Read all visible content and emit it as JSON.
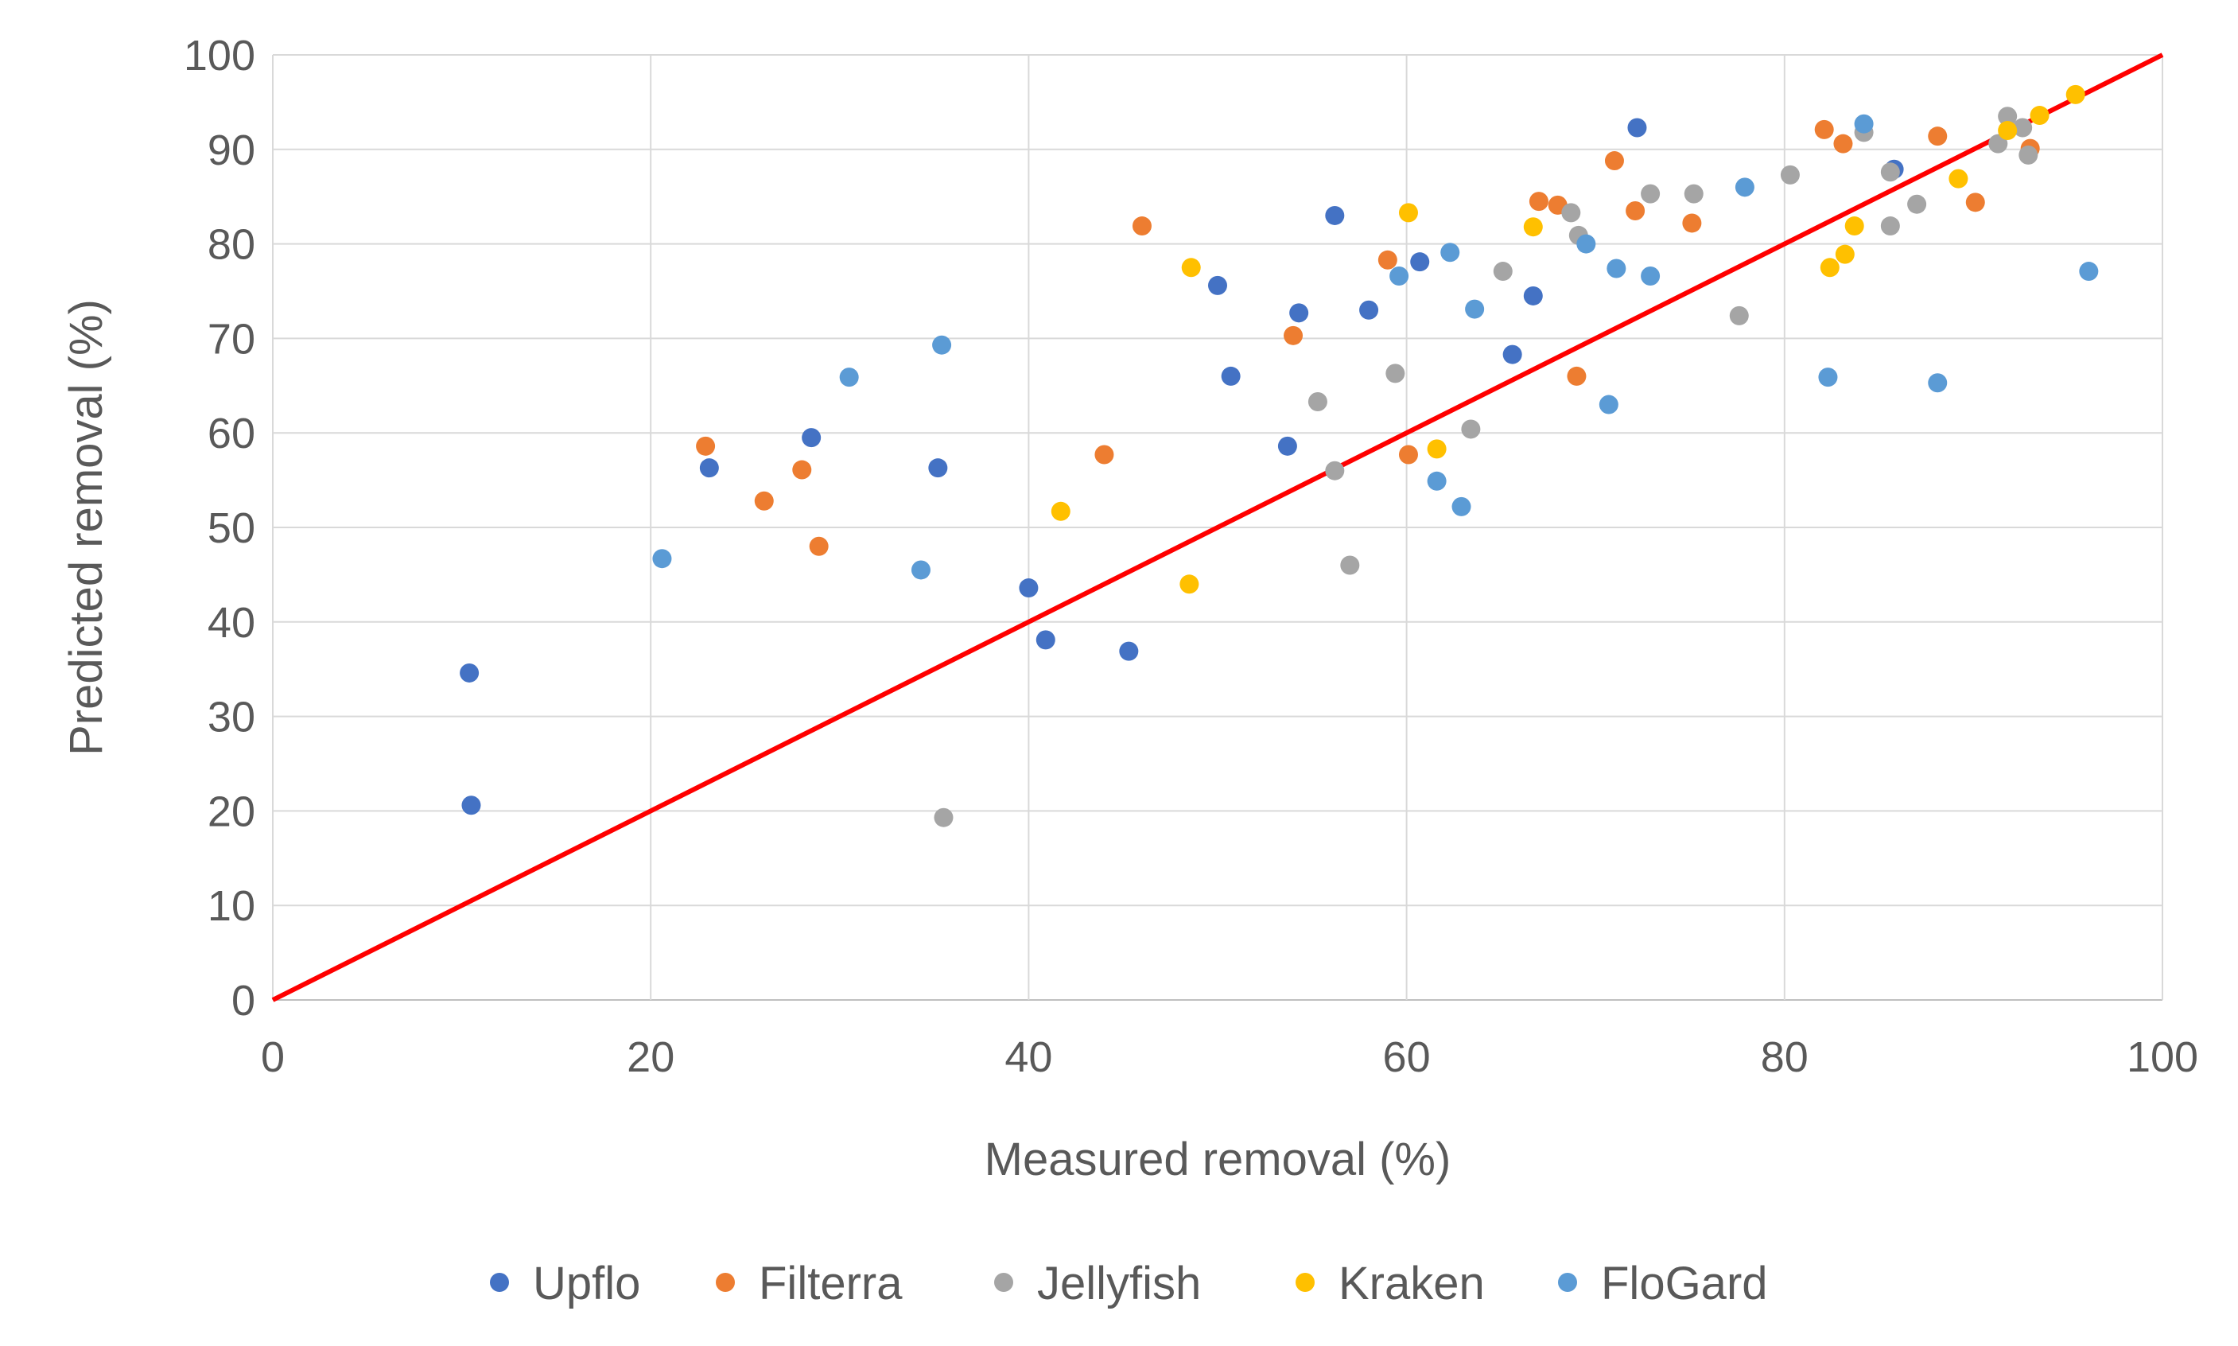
{
  "chart_data": {
    "type": "scatter",
    "title": "",
    "xlabel": "Measured removal (%)",
    "ylabel": "Predicted removal (%)",
    "xlim": [
      0,
      100
    ],
    "ylim": [
      0,
      100
    ],
    "xticks": [
      0,
      20,
      40,
      60,
      80,
      100
    ],
    "yticks": [
      0,
      10,
      20,
      30,
      40,
      50,
      60,
      70,
      80,
      90,
      100
    ],
    "grid": true,
    "legend_position": "bottom",
    "reference_line": {
      "name": "1:1 line",
      "x": [
        0,
        100
      ],
      "y": [
        0,
        100
      ],
      "color": "#FF0000"
    },
    "series": [
      {
        "name": "Upflo",
        "color": "#4472C4",
        "points": [
          [
            10.4,
            34.6
          ],
          [
            10.5,
            20.6
          ],
          [
            23.1,
            56.3
          ],
          [
            28.5,
            59.5
          ],
          [
            35.2,
            56.3
          ],
          [
            40.0,
            43.6
          ],
          [
            40.9,
            38.1
          ],
          [
            45.3,
            36.9
          ],
          [
            50.0,
            75.6
          ],
          [
            50.7,
            66.0
          ],
          [
            54.3,
            72.7
          ],
          [
            53.7,
            58.6
          ],
          [
            56.2,
            83.0
          ],
          [
            58.0,
            73.0
          ],
          [
            60.7,
            78.1
          ],
          [
            65.6,
            68.3
          ],
          [
            66.7,
            74.5
          ],
          [
            72.2,
            92.3
          ],
          [
            85.8,
            87.9
          ]
        ]
      },
      {
        "name": "Filterra",
        "color": "#ED7D31",
        "points": [
          [
            22.9,
            58.6
          ],
          [
            26.0,
            52.8
          ],
          [
            28.0,
            56.1
          ],
          [
            28.9,
            48.0
          ],
          [
            44.0,
            57.7
          ],
          [
            46.0,
            81.9
          ],
          [
            54.0,
            70.3
          ],
          [
            59.0,
            78.3
          ],
          [
            60.1,
            57.7
          ],
          [
            67.0,
            84.5
          ],
          [
            68.0,
            84.1
          ],
          [
            69.0,
            66.0
          ],
          [
            71.0,
            88.8
          ],
          [
            72.1,
            83.5
          ],
          [
            75.1,
            82.2
          ],
          [
            82.1,
            92.1
          ],
          [
            83.1,
            90.6
          ],
          [
            88.1,
            91.4
          ],
          [
            90.1,
            84.4
          ],
          [
            93.0,
            90.1
          ]
        ]
      },
      {
        "name": "Jellyfish",
        "color": "#A5A5A5",
        "points": [
          [
            35.5,
            19.3
          ],
          [
            55.3,
            63.3
          ],
          [
            56.2,
            56.0
          ],
          [
            57.0,
            46.0
          ],
          [
            59.4,
            66.3
          ],
          [
            63.4,
            60.4
          ],
          [
            65.1,
            77.1
          ],
          [
            68.7,
            83.3
          ],
          [
            69.1,
            80.9
          ],
          [
            72.9,
            85.3
          ],
          [
            75.2,
            85.3
          ],
          [
            77.6,
            72.4
          ],
          [
            80.3,
            87.3
          ],
          [
            84.2,
            91.8
          ],
          [
            85.6,
            87.6
          ],
          [
            85.6,
            81.9
          ],
          [
            87.0,
            84.2
          ],
          [
            91.3,
            90.6
          ],
          [
            91.8,
            93.5
          ],
          [
            92.6,
            92.3
          ],
          [
            92.9,
            89.4
          ]
        ]
      },
      {
        "name": "Kraken",
        "color": "#FFC000",
        "points": [
          [
            41.7,
            51.7
          ],
          [
            48.5,
            44.0
          ],
          [
            48.6,
            77.5
          ],
          [
            60.1,
            83.3
          ],
          [
            61.6,
            58.3
          ],
          [
            66.7,
            81.8
          ],
          [
            82.4,
            77.5
          ],
          [
            83.2,
            78.9
          ],
          [
            83.7,
            81.9
          ],
          [
            89.2,
            86.9
          ],
          [
            91.8,
            92.0
          ],
          [
            93.5,
            93.6
          ],
          [
            95.4,
            95.8
          ]
        ]
      },
      {
        "name": "FloGard",
        "color": "#5B9BD5",
        "points": [
          [
            20.6,
            46.7
          ],
          [
            30.5,
            65.9
          ],
          [
            34.3,
            45.5
          ],
          [
            35.4,
            69.3
          ],
          [
            59.6,
            76.6
          ],
          [
            61.6,
            54.9
          ],
          [
            62.3,
            79.1
          ],
          [
            62.9,
            52.2
          ],
          [
            63.6,
            73.1
          ],
          [
            69.5,
            80.0
          ],
          [
            70.7,
            63.0
          ],
          [
            71.1,
            77.4
          ],
          [
            72.9,
            76.6
          ],
          [
            77.9,
            86.0
          ],
          [
            82.3,
            65.9
          ],
          [
            84.2,
            92.7
          ],
          [
            88.1,
            65.3
          ],
          [
            96.1,
            77.1
          ]
        ]
      }
    ]
  }
}
